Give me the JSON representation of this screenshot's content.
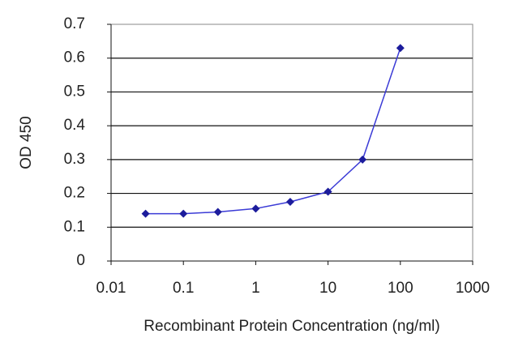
{
  "chart_data": {
    "type": "line",
    "xlabel": "Recombinant Protein Concentration (ng/ml)",
    "ylabel": "OD 450",
    "x": [
      0.03,
      0.1,
      0.3,
      1,
      3,
      10,
      30,
      100
    ],
    "values": [
      0.14,
      0.14,
      0.145,
      0.155,
      0.175,
      0.205,
      0.3,
      0.63
    ],
    "color": "#1c1c9c",
    "line_color": "#3b3bd6",
    "xscale": "log",
    "xlim": [
      0.01,
      1000
    ],
    "xticks": [
      0.01,
      0.1,
      1,
      10,
      100,
      1000
    ],
    "ylim": [
      0,
      0.7
    ],
    "yticks": [
      0,
      0.1,
      0.2,
      0.3,
      0.4,
      0.5,
      0.6,
      0.7
    ],
    "grid": true
  }
}
